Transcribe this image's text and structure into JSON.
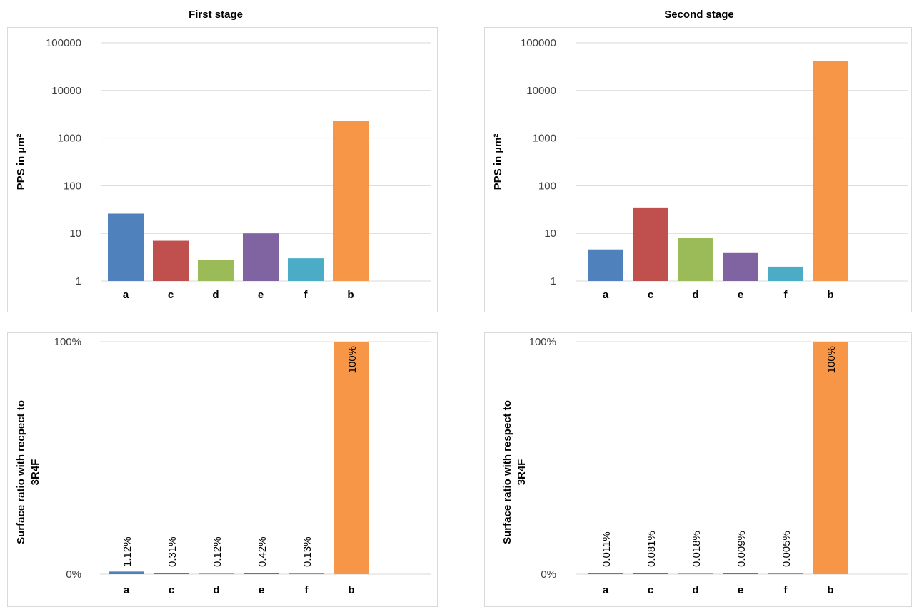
{
  "headings": {
    "left": "First stage",
    "right": "Second stage"
  },
  "colors": {
    "a": "#4f81bd",
    "c": "#c0504d",
    "d": "#9bbb59",
    "e": "#8064a2",
    "f": "#4bacc6",
    "b": "#f79646"
  },
  "chart_data": [
    {
      "type": "bar",
      "scale": "log",
      "categories": [
        "a",
        "c",
        "d",
        "e",
        "f",
        "b"
      ],
      "values": [
        26,
        7,
        2.8,
        10,
        3,
        2300
      ],
      "ylabel": "PPS in µm²",
      "ylim": [
        1,
        100000
      ],
      "yticks": [
        "1",
        "10",
        "100",
        "1000",
        "10000",
        "100000"
      ],
      "grid": true
    },
    {
      "type": "bar",
      "scale": "log",
      "categories": [
        "a",
        "c",
        "d",
        "e",
        "f",
        "b"
      ],
      "values": [
        4.6,
        35,
        8,
        4,
        2,
        42000
      ],
      "ylabel": "PPS in µm²",
      "ylim": [
        1,
        100000
      ],
      "yticks": [
        "1",
        "10",
        "100",
        "1000",
        "10000",
        "100000"
      ],
      "grid": true
    },
    {
      "type": "bar",
      "scale": "linear",
      "categories": [
        "a",
        "c",
        "d",
        "e",
        "f",
        "b"
      ],
      "values": [
        1.12,
        0.31,
        0.12,
        0.42,
        0.13,
        100
      ],
      "value_labels": [
        "1.12%",
        "0.31%",
        "0.12%",
        "0.42%",
        "0.13%",
        "100%"
      ],
      "ylabel_lines": [
        "Surface ratio with recpect to",
        "3R4F"
      ],
      "ylim": [
        0,
        100
      ],
      "yticks": [
        "0%",
        "100%"
      ],
      "grid": true
    },
    {
      "type": "bar",
      "scale": "linear",
      "categories": [
        "a",
        "c",
        "d",
        "e",
        "f",
        "b"
      ],
      "values": [
        0.011,
        0.081,
        0.018,
        0.009,
        0.005,
        100
      ],
      "value_labels": [
        "0.011%",
        "0.081%",
        "0.018%",
        "0.009%",
        "0.005%",
        "100%"
      ],
      "ylabel_lines": [
        "Surface ratio with respect to",
        "3R4F"
      ],
      "ylim": [
        0,
        100
      ],
      "yticks": [
        "0%",
        "100%"
      ],
      "grid": true
    }
  ]
}
